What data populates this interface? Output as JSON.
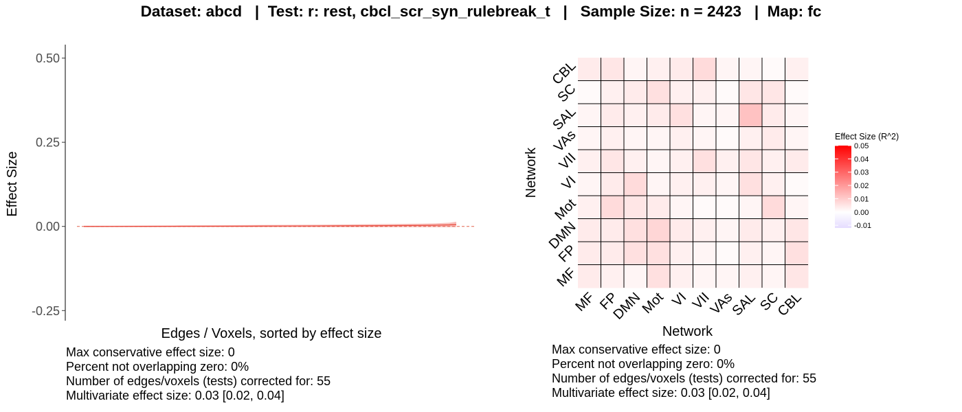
{
  "title": "Dataset: abcd   |  Test: r: rest, cbcl_scr_syn_rulebreak_t   |   Sample Size: n = 2423   |  Map: fc",
  "chart_data": [
    {
      "type": "line",
      "title": "",
      "xlabel": "Edges / Voxels, sorted by effect size",
      "ylabel": "Effect Size",
      "ylim": [
        -0.28,
        0.54
      ],
      "yticks": [
        -0.25,
        0.0,
        0.25,
        0.5
      ],
      "ytick_labels": [
        "-0.25",
        "0.00",
        "0.25",
        "0.50"
      ],
      "reference_line_y": 0,
      "series": [
        {
          "x": [
            1,
            5,
            10,
            15,
            20,
            25,
            30,
            35,
            40,
            45,
            50,
            52,
            54,
            55
          ],
          "y": [
            0.0,
            0.0001,
            0.0002,
            0.0004,
            0.0006,
            0.0008,
            0.0011,
            0.0014,
            0.0018,
            0.0023,
            0.003,
            0.0036,
            0.0045,
            0.0055
          ],
          "ci_lower": [
            -0.002,
            -0.002,
            -0.002,
            -0.002,
            -0.002,
            -0.002,
            -0.002,
            -0.002,
            -0.002,
            -0.002,
            -0.002,
            -0.002,
            -0.002,
            -0.002
          ],
          "ci_upper": [
            0.002,
            0.002,
            0.0025,
            0.003,
            0.0035,
            0.004,
            0.0045,
            0.005,
            0.006,
            0.007,
            0.008,
            0.009,
            0.011,
            0.014
          ]
        }
      ],
      "grid": false,
      "notes": [
        "Max conservative effect size: 0",
        "Percent not overlapping zero: 0%",
        "Number of edges/voxels (tests) corrected for: 55",
        "Multivariate effect size: 0.03 [0.02, 0.04]"
      ]
    },
    {
      "type": "heatmap",
      "title": "",
      "xlabel": "Network",
      "ylabel": "Network",
      "x_categories": [
        "MF",
        "FP",
        "DMN",
        "Mot",
        "VI",
        "VII",
        "VAs",
        "SAL",
        "SC",
        "CBL"
      ],
      "y_categories": [
        "MF",
        "FP",
        "DMN",
        "Mot",
        "VI",
        "VII",
        "VAs",
        "SAL",
        "SC",
        "CBL"
      ],
      "values": [
        [
          0.004,
          0.003,
          0.002,
          0.006,
          0.003,
          0.002,
          0.002,
          0.003,
          0.002,
          0.005
        ],
        [
          0.004,
          0.004,
          0.006,
          0.006,
          0.003,
          0.002,
          0.001,
          0.003,
          0.002,
          0.006
        ],
        [
          0.004,
          0.004,
          0.006,
          0.008,
          0.004,
          0.003,
          0.002,
          0.004,
          0.003,
          0.005
        ],
        [
          0.003,
          0.007,
          0.005,
          0.004,
          0.002,
          0.001,
          0.001,
          0.002,
          0.007,
          0.002
        ],
        [
          0.002,
          0.004,
          0.007,
          0.002,
          0.003,
          0.003,
          0.002,
          0.006,
          0.003,
          0.001
        ],
        [
          0.003,
          0.005,
          0.003,
          0.002,
          0.003,
          0.006,
          0.003,
          0.005,
          0.003,
          0.004
        ],
        [
          0.002,
          0.003,
          0.002,
          0.002,
          0.003,
          0.002,
          0.001,
          0.003,
          0.004,
          0.002
        ],
        [
          0.002,
          0.004,
          0.003,
          0.004,
          0.006,
          0.002,
          0.002,
          0.012,
          0.004,
          0.002
        ],
        [
          0.001,
          0.003,
          0.004,
          0.006,
          0.003,
          0.003,
          0.001,
          0.005,
          0.005,
          0.001
        ],
        [
          0.004,
          0.005,
          0.002,
          0.003,
          0.004,
          0.007,
          0.002,
          0.002,
          0.001,
          0.003
        ]
      ],
      "legend": {
        "title": "Effect Size (R^2)",
        "ticks": [
          0.05,
          0.04,
          0.03,
          0.02,
          0.01,
          0.0,
          -0.01
        ],
        "tick_labels": [
          "0.05",
          "0.04",
          "0.03",
          "0.02",
          "0.01",
          "0.00",
          "-0.01"
        ],
        "placement": "right",
        "color_low": "#e5dcff",
        "color_mid": "#ffffff",
        "color_high": "#ff0000",
        "range": [
          -0.012,
          0.05
        ]
      },
      "notes": [
        "Max conservative effect size: 0",
        "Percent not overlapping zero: 0%",
        "Number of edges/voxels (tests) corrected for: 55",
        "Multivariate effect size: 0.03 [0.02, 0.04]"
      ]
    }
  ]
}
